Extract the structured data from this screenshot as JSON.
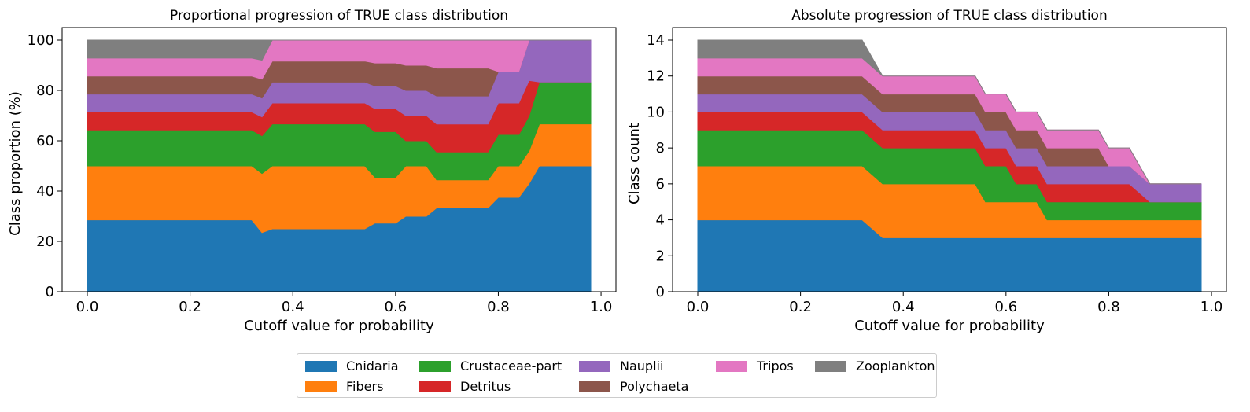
{
  "colors": {
    "Cnidaria": "#1f77b4",
    "Fibers": "#ff7f0e",
    "Crustaceae-part": "#2ca02c",
    "Detritus": "#d62728",
    "Nauplii": "#9467bd",
    "Polychaeta": "#8c564b",
    "Tripos": "#e377c2",
    "Zooplankton": "#7f7f7f"
  },
  "legend": {
    "items": [
      "Cnidaria",
      "Crustaceae-part",
      "Nauplii",
      "Tripos",
      "Zooplankton",
      "Fibers",
      "Detritus",
      "Polychaeta"
    ]
  },
  "chart_data": [
    {
      "type": "area",
      "stacked": true,
      "title": "Proportional progression of TRUE class distribution",
      "xlabel": "Cutoff value for probability",
      "ylabel": "Class proportion (%)",
      "xlim": [
        -0.049,
        1.029
      ],
      "ylim": [
        0,
        105
      ],
      "xticks": [
        0.0,
        0.2,
        0.4,
        0.6,
        0.8,
        1.0
      ],
      "xtick_labels": [
        "0.0",
        "0.2",
        "0.4",
        "0.6",
        "0.8",
        "1.0"
      ],
      "yticks": [
        0,
        20,
        40,
        60,
        80,
        100
      ],
      "ytick_labels": [
        "0",
        "20",
        "40",
        "60",
        "80",
        "100"
      ],
      "grid": false,
      "x": [
        0.0,
        0.32,
        0.34,
        0.36,
        0.54,
        0.56,
        0.6,
        0.62,
        0.66,
        0.68,
        0.78,
        0.8,
        0.84,
        0.86,
        0.88,
        0.98
      ],
      "series": [
        {
          "name": "Cnidaria",
          "values": [
            28.57,
            28.57,
            23.5,
            25.0,
            25.0,
            27.27,
            27.27,
            30.0,
            30.0,
            33.33,
            33.33,
            37.5,
            37.5,
            43.0,
            50.0,
            50.0
          ]
        },
        {
          "name": "Fibers",
          "values": [
            21.43,
            21.43,
            23.5,
            25.0,
            25.0,
            18.18,
            18.18,
            20.0,
            20.0,
            11.11,
            11.11,
            12.5,
            12.5,
            13.0,
            16.67,
            16.67
          ]
        },
        {
          "name": "Crustaceae-part",
          "values": [
            14.29,
            14.29,
            15.0,
            16.67,
            16.67,
            18.18,
            18.18,
            10.0,
            10.0,
            11.11,
            11.11,
            12.5,
            12.5,
            14.0,
            16.67,
            16.67
          ]
        },
        {
          "name": "Detritus",
          "values": [
            7.14,
            7.14,
            7.5,
            8.33,
            8.33,
            9.09,
            9.09,
            10.0,
            10.0,
            11.11,
            11.11,
            12.5,
            12.5,
            14.0,
            0.0,
            0.0
          ]
        },
        {
          "name": "Nauplii",
          "values": [
            7.14,
            7.14,
            7.5,
            8.33,
            8.33,
            9.09,
            9.09,
            10.0,
            10.0,
            11.11,
            11.11,
            12.5,
            12.5,
            16.0,
            16.66,
            16.66
          ]
        },
        {
          "name": "Polychaeta",
          "values": [
            7.14,
            7.14,
            7.5,
            8.33,
            8.33,
            9.09,
            9.09,
            10.0,
            10.0,
            11.11,
            11.11,
            0.0,
            0.0,
            0.0,
            0.0,
            0.0
          ]
        },
        {
          "name": "Tripos",
          "values": [
            7.14,
            7.14,
            7.5,
            8.34,
            8.34,
            9.1,
            9.1,
            10.0,
            10.0,
            11.12,
            11.12,
            12.5,
            12.5,
            0.0,
            0.0,
            0.0
          ]
        },
        {
          "name": "Zooplankton",
          "values": [
            7.15,
            7.15,
            8.0,
            0.0,
            0.0,
            0.0,
            0.0,
            0.0,
            0.0,
            0.0,
            0.0,
            0.0,
            0.0,
            0.0,
            0.0,
            0.0
          ]
        }
      ]
    },
    {
      "type": "area",
      "stacked": true,
      "title": "Absolute progression of TRUE class distribution",
      "xlabel": "Cutoff value for probability",
      "ylabel": "Class count",
      "xlim": [
        -0.049,
        1.029
      ],
      "ylim": [
        0,
        14.7
      ],
      "xticks": [
        0.0,
        0.2,
        0.4,
        0.6,
        0.8,
        1.0
      ],
      "xtick_labels": [
        "0.0",
        "0.2",
        "0.4",
        "0.6",
        "0.8",
        "1.0"
      ],
      "yticks": [
        0,
        2,
        4,
        6,
        8,
        10,
        12,
        14
      ],
      "ytick_labels": [
        "0",
        "2",
        "4",
        "6",
        "8",
        "10",
        "12",
        "14"
      ],
      "grid": false,
      "x": [
        0.0,
        0.32,
        0.36,
        0.54,
        0.56,
        0.6,
        0.62,
        0.66,
        0.68,
        0.78,
        0.8,
        0.84,
        0.88,
        0.98
      ],
      "series": [
        {
          "name": "Cnidaria",
          "values": [
            4,
            4,
            3,
            3,
            3,
            3,
            3,
            3,
            3,
            3,
            3,
            3,
            3,
            3
          ]
        },
        {
          "name": "Fibers",
          "values": [
            3,
            3,
            3,
            3,
            2,
            2,
            2,
            2,
            1,
            1,
            1,
            1,
            1,
            1
          ]
        },
        {
          "name": "Crustaceae-part",
          "values": [
            2,
            2,
            2,
            2,
            2,
            2,
            1,
            1,
            1,
            1,
            1,
            1,
            1,
            1
          ]
        },
        {
          "name": "Detritus",
          "values": [
            1,
            1,
            1,
            1,
            1,
            1,
            1,
            1,
            1,
            1,
            1,
            1,
            0,
            0
          ]
        },
        {
          "name": "Nauplii",
          "values": [
            1,
            1,
            1,
            1,
            1,
            1,
            1,
            1,
            1,
            1,
            1,
            1,
            1,
            1
          ]
        },
        {
          "name": "Polychaeta",
          "values": [
            1,
            1,
            1,
            1,
            1,
            1,
            1,
            1,
            1,
            1,
            0,
            0,
            0,
            0
          ]
        },
        {
          "name": "Tripos",
          "values": [
            1,
            1,
            1,
            1,
            1,
            1,
            1,
            1,
            1,
            1,
            1,
            1,
            0,
            0
          ]
        },
        {
          "name": "Zooplankton",
          "values": [
            1,
            1,
            0,
            0,
            0,
            0,
            0,
            0,
            0,
            0,
            0,
            0,
            0,
            0
          ]
        }
      ]
    }
  ]
}
